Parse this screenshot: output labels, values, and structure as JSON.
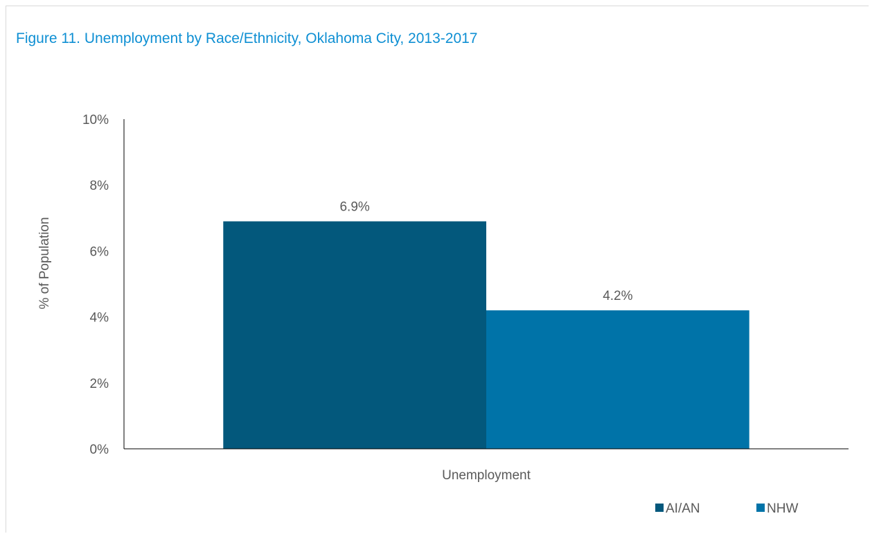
{
  "chart_data": {
    "type": "bar",
    "title": "Figure 11. Unemployment by Race/Ethnicity, Oklahoma City, 2013-2017",
    "ylabel": "% of Population",
    "xlabel": "",
    "categories": [
      "Unemployment"
    ],
    "series": [
      {
        "name": "AI/AN",
        "values": [
          6.9
        ],
        "color": "#03587c",
        "label": "6.9%"
      },
      {
        "name": "NHW",
        "values": [
          4.2
        ],
        "color": "#0073a8",
        "label": "4.2%"
      }
    ],
    "ylim": [
      0,
      10
    ],
    "yticks": [
      {
        "value": 0,
        "label": "0%"
      },
      {
        "value": 2,
        "label": "2%"
      },
      {
        "value": 4,
        "label": "4%"
      },
      {
        "value": 6,
        "label": "6%"
      },
      {
        "value": 8,
        "label": "8%"
      },
      {
        "value": 10,
        "label": "10%"
      }
    ],
    "grid": false,
    "legend": "bottom-right",
    "title_color": "#0e8fd3"
  }
}
